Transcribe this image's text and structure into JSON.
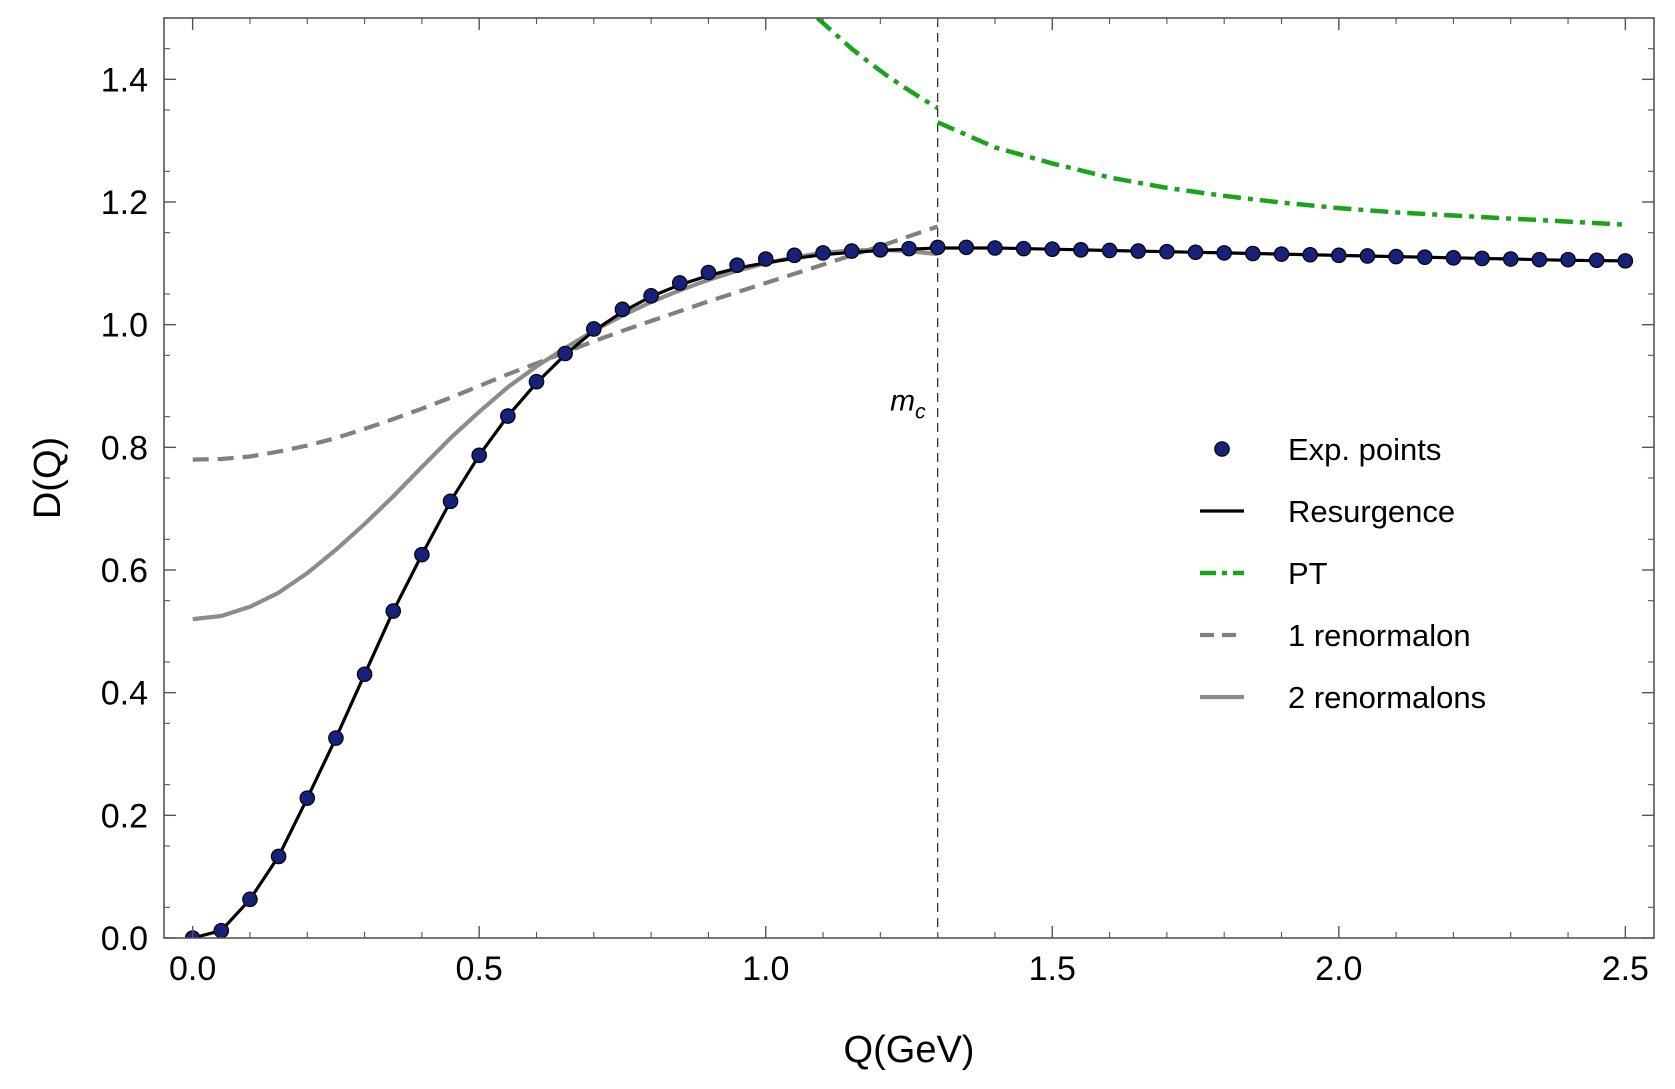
{
  "chart_data": {
    "type": "line",
    "title": "",
    "xlabel": "Q(GeV)",
    "ylabel": "D(Q)",
    "xlim": [
      -0.05,
      2.55
    ],
    "ylim": [
      0.0,
      1.5
    ],
    "grid": false,
    "legend_position": "center-right",
    "x_ticks": [
      0.0,
      0.5,
      1.0,
      1.5,
      2.0,
      2.5
    ],
    "x_tick_labels": [
      "0.0",
      "0.5",
      "1.0",
      "1.5",
      "2.0",
      "2.5"
    ],
    "y_ticks": [
      0.0,
      0.2,
      0.4,
      0.6,
      0.8,
      1.0,
      1.2,
      1.4
    ],
    "y_tick_labels": [
      "0.0",
      "0.2",
      "0.4",
      "0.6",
      "0.8",
      "1.0",
      "1.2",
      "1.4"
    ],
    "annotations": [
      {
        "text": "m",
        "subscript": "c",
        "x": 1.3,
        "y": 0.88,
        "vline_x": 1.3
      }
    ],
    "series": [
      {
        "name": "Exp. points",
        "style": "markers",
        "color": "#16227a",
        "x": [
          0.0,
          0.05,
          0.1,
          0.15,
          0.2,
          0.25,
          0.3,
          0.35,
          0.4,
          0.45,
          0.5,
          0.55,
          0.6,
          0.65,
          0.7,
          0.75,
          0.8,
          0.85,
          0.9,
          0.95,
          1.0,
          1.05,
          1.1,
          1.15,
          1.2,
          1.25,
          1.3,
          1.35,
          1.4,
          1.45,
          1.5,
          1.55,
          1.6,
          1.65,
          1.7,
          1.75,
          1.8,
          1.85,
          1.9,
          1.95,
          2.0,
          2.05,
          2.1,
          2.15,
          2.2,
          2.25,
          2.3,
          2.35,
          2.4,
          2.45,
          2.5
        ],
        "y": [
          0.0,
          0.012,
          0.063,
          0.133,
          0.228,
          0.326,
          0.43,
          0.533,
          0.625,
          0.712,
          0.787,
          0.851,
          0.907,
          0.953,
          0.993,
          1.025,
          1.047,
          1.068,
          1.085,
          1.097,
          1.107,
          1.113,
          1.117,
          1.12,
          1.122,
          1.124,
          1.126,
          1.126,
          1.125,
          1.124,
          1.123,
          1.122,
          1.121,
          1.12,
          1.119,
          1.118,
          1.117,
          1.116,
          1.115,
          1.114,
          1.113,
          1.112,
          1.111,
          1.11,
          1.109,
          1.108,
          1.107,
          1.106,
          1.106,
          1.105,
          1.104
        ]
      },
      {
        "name": "Resurgence",
        "style": "solid",
        "color": "#000000",
        "x": [
          0.0,
          0.05,
          0.1,
          0.15,
          0.2,
          0.25,
          0.3,
          0.35,
          0.4,
          0.45,
          0.5,
          0.55,
          0.6,
          0.65,
          0.7,
          0.75,
          0.8,
          0.85,
          0.9,
          0.95,
          1.0,
          1.05,
          1.1,
          1.15,
          1.2,
          1.25,
          1.3,
          1.4,
          1.5,
          1.6,
          1.7,
          1.8,
          1.9,
          2.0,
          2.1,
          2.2,
          2.3,
          2.4,
          2.5
        ],
        "y": [
          0.0,
          0.012,
          0.063,
          0.133,
          0.228,
          0.326,
          0.43,
          0.533,
          0.625,
          0.712,
          0.787,
          0.851,
          0.905,
          0.951,
          0.99,
          1.021,
          1.046,
          1.065,
          1.08,
          1.092,
          1.101,
          1.108,
          1.114,
          1.118,
          1.121,
          1.123,
          1.125,
          1.125,
          1.123,
          1.121,
          1.119,
          1.117,
          1.115,
          1.113,
          1.111,
          1.109,
          1.107,
          1.105,
          1.104
        ]
      },
      {
        "name": "PT",
        "style": "dash-dot",
        "color": "#1ca31c",
        "segments": [
          {
            "x": [
              1.09,
              1.12,
              1.15,
              1.18,
              1.21,
              1.24,
              1.27,
              1.3
            ],
            "y": [
              1.5,
              1.475,
              1.45,
              1.428,
              1.407,
              1.388,
              1.37,
              1.353
            ]
          },
          {
            "x": [
              1.3,
              1.4,
              1.5,
              1.6,
              1.7,
              1.8,
              1.9,
              2.0,
              2.1,
              2.2,
              2.3,
              2.4,
              2.5
            ],
            "y": [
              1.33,
              1.289,
              1.263,
              1.24,
              1.223,
              1.21,
              1.199,
              1.19,
              1.183,
              1.178,
              1.173,
              1.168,
              1.163
            ]
          }
        ]
      },
      {
        "name": "1 renormalon",
        "style": "dashed",
        "color": "#808080",
        "x": [
          0.0,
          0.05,
          0.1,
          0.15,
          0.2,
          0.25,
          0.3,
          0.35,
          0.4,
          0.45,
          0.5,
          0.55,
          0.6,
          0.65,
          0.7,
          0.75,
          0.8,
          0.85,
          0.9,
          0.95,
          1.0,
          1.05,
          1.1,
          1.15,
          1.2,
          1.25,
          1.3
        ],
        "y": [
          0.78,
          0.781,
          0.785,
          0.793,
          0.803,
          0.815,
          0.83,
          0.846,
          0.863,
          0.881,
          0.9,
          0.919,
          0.937,
          0.955,
          0.973,
          0.99,
          1.006,
          1.022,
          1.038,
          1.053,
          1.068,
          1.083,
          1.098,
          1.113,
          1.128,
          1.144,
          1.16
        ]
      },
      {
        "name": "2 renormalons",
        "style": "solid",
        "color": "#8c8c8c",
        "x": [
          0.0,
          0.05,
          0.1,
          0.15,
          0.2,
          0.25,
          0.3,
          0.35,
          0.4,
          0.45,
          0.5,
          0.55,
          0.6,
          0.65,
          0.7,
          0.75,
          0.8,
          0.85,
          0.9,
          0.95,
          1.0,
          1.05,
          1.1,
          1.15,
          1.2,
          1.25,
          1.3
        ],
        "y": [
          0.52,
          0.525,
          0.54,
          0.563,
          0.595,
          0.633,
          0.675,
          0.72,
          0.768,
          0.815,
          0.858,
          0.898,
          0.932,
          0.962,
          0.99,
          1.015,
          1.037,
          1.056,
          1.073,
          1.088,
          1.1,
          1.11,
          1.117,
          1.121,
          1.122,
          1.12,
          1.115
        ]
      }
    ]
  }
}
